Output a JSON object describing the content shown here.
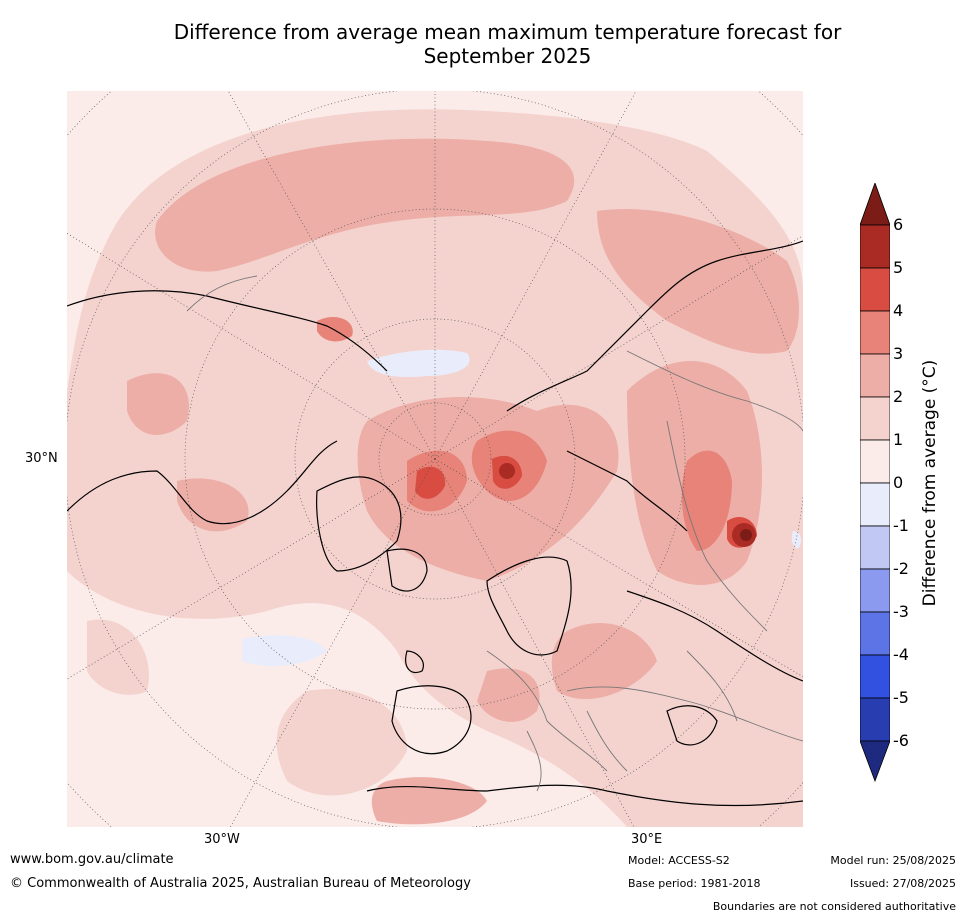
{
  "title_line1": "Difference from average mean maximum temperature forecast for",
  "title_line2": "September 2025",
  "map": {
    "projection": "north-polar",
    "lat_label": "30°N",
    "lon_labels": [
      "30°W",
      "30°E"
    ]
  },
  "colorbar": {
    "label": "Difference from average (°C)",
    "ticks": [
      "6",
      "5",
      "4",
      "3",
      "2",
      "1",
      "0",
      "-1",
      "-2",
      "-3",
      "-4",
      "-5",
      "-6"
    ],
    "colors": {
      "above_6": "#7b1c17",
      "5_to_6": "#a92b24",
      "4_to_5": "#d94c42",
      "3_to_4": "#e78379",
      "2_to_3": "#edaea7",
      "1_to_2": "#f4d3cf",
      "0_to_1": "#fbecea",
      "neg1_to_0": "#e9ecfa",
      "neg2_to_neg1": "#c1c8f3",
      "neg3_to_neg2": "#8b99ee",
      "neg4_to_neg3": "#5c74e6",
      "neg5_to_neg4": "#3351e0",
      "neg6_to_neg5": "#273db0",
      "below_neg6": "#1e2a80"
    }
  },
  "footer": {
    "website": "www.bom.gov.au/climate",
    "copyright": "© Commonwealth of Australia 2025, Australian Bureau of Meteorology",
    "model": "Model: ACCESS-S2",
    "base_period": "Base period: 1981-2018",
    "model_run": "Model run: 25/08/2025",
    "issued": "Issued: 27/08/2025",
    "disclaimer": "Boundaries are not considered authoritative"
  }
}
